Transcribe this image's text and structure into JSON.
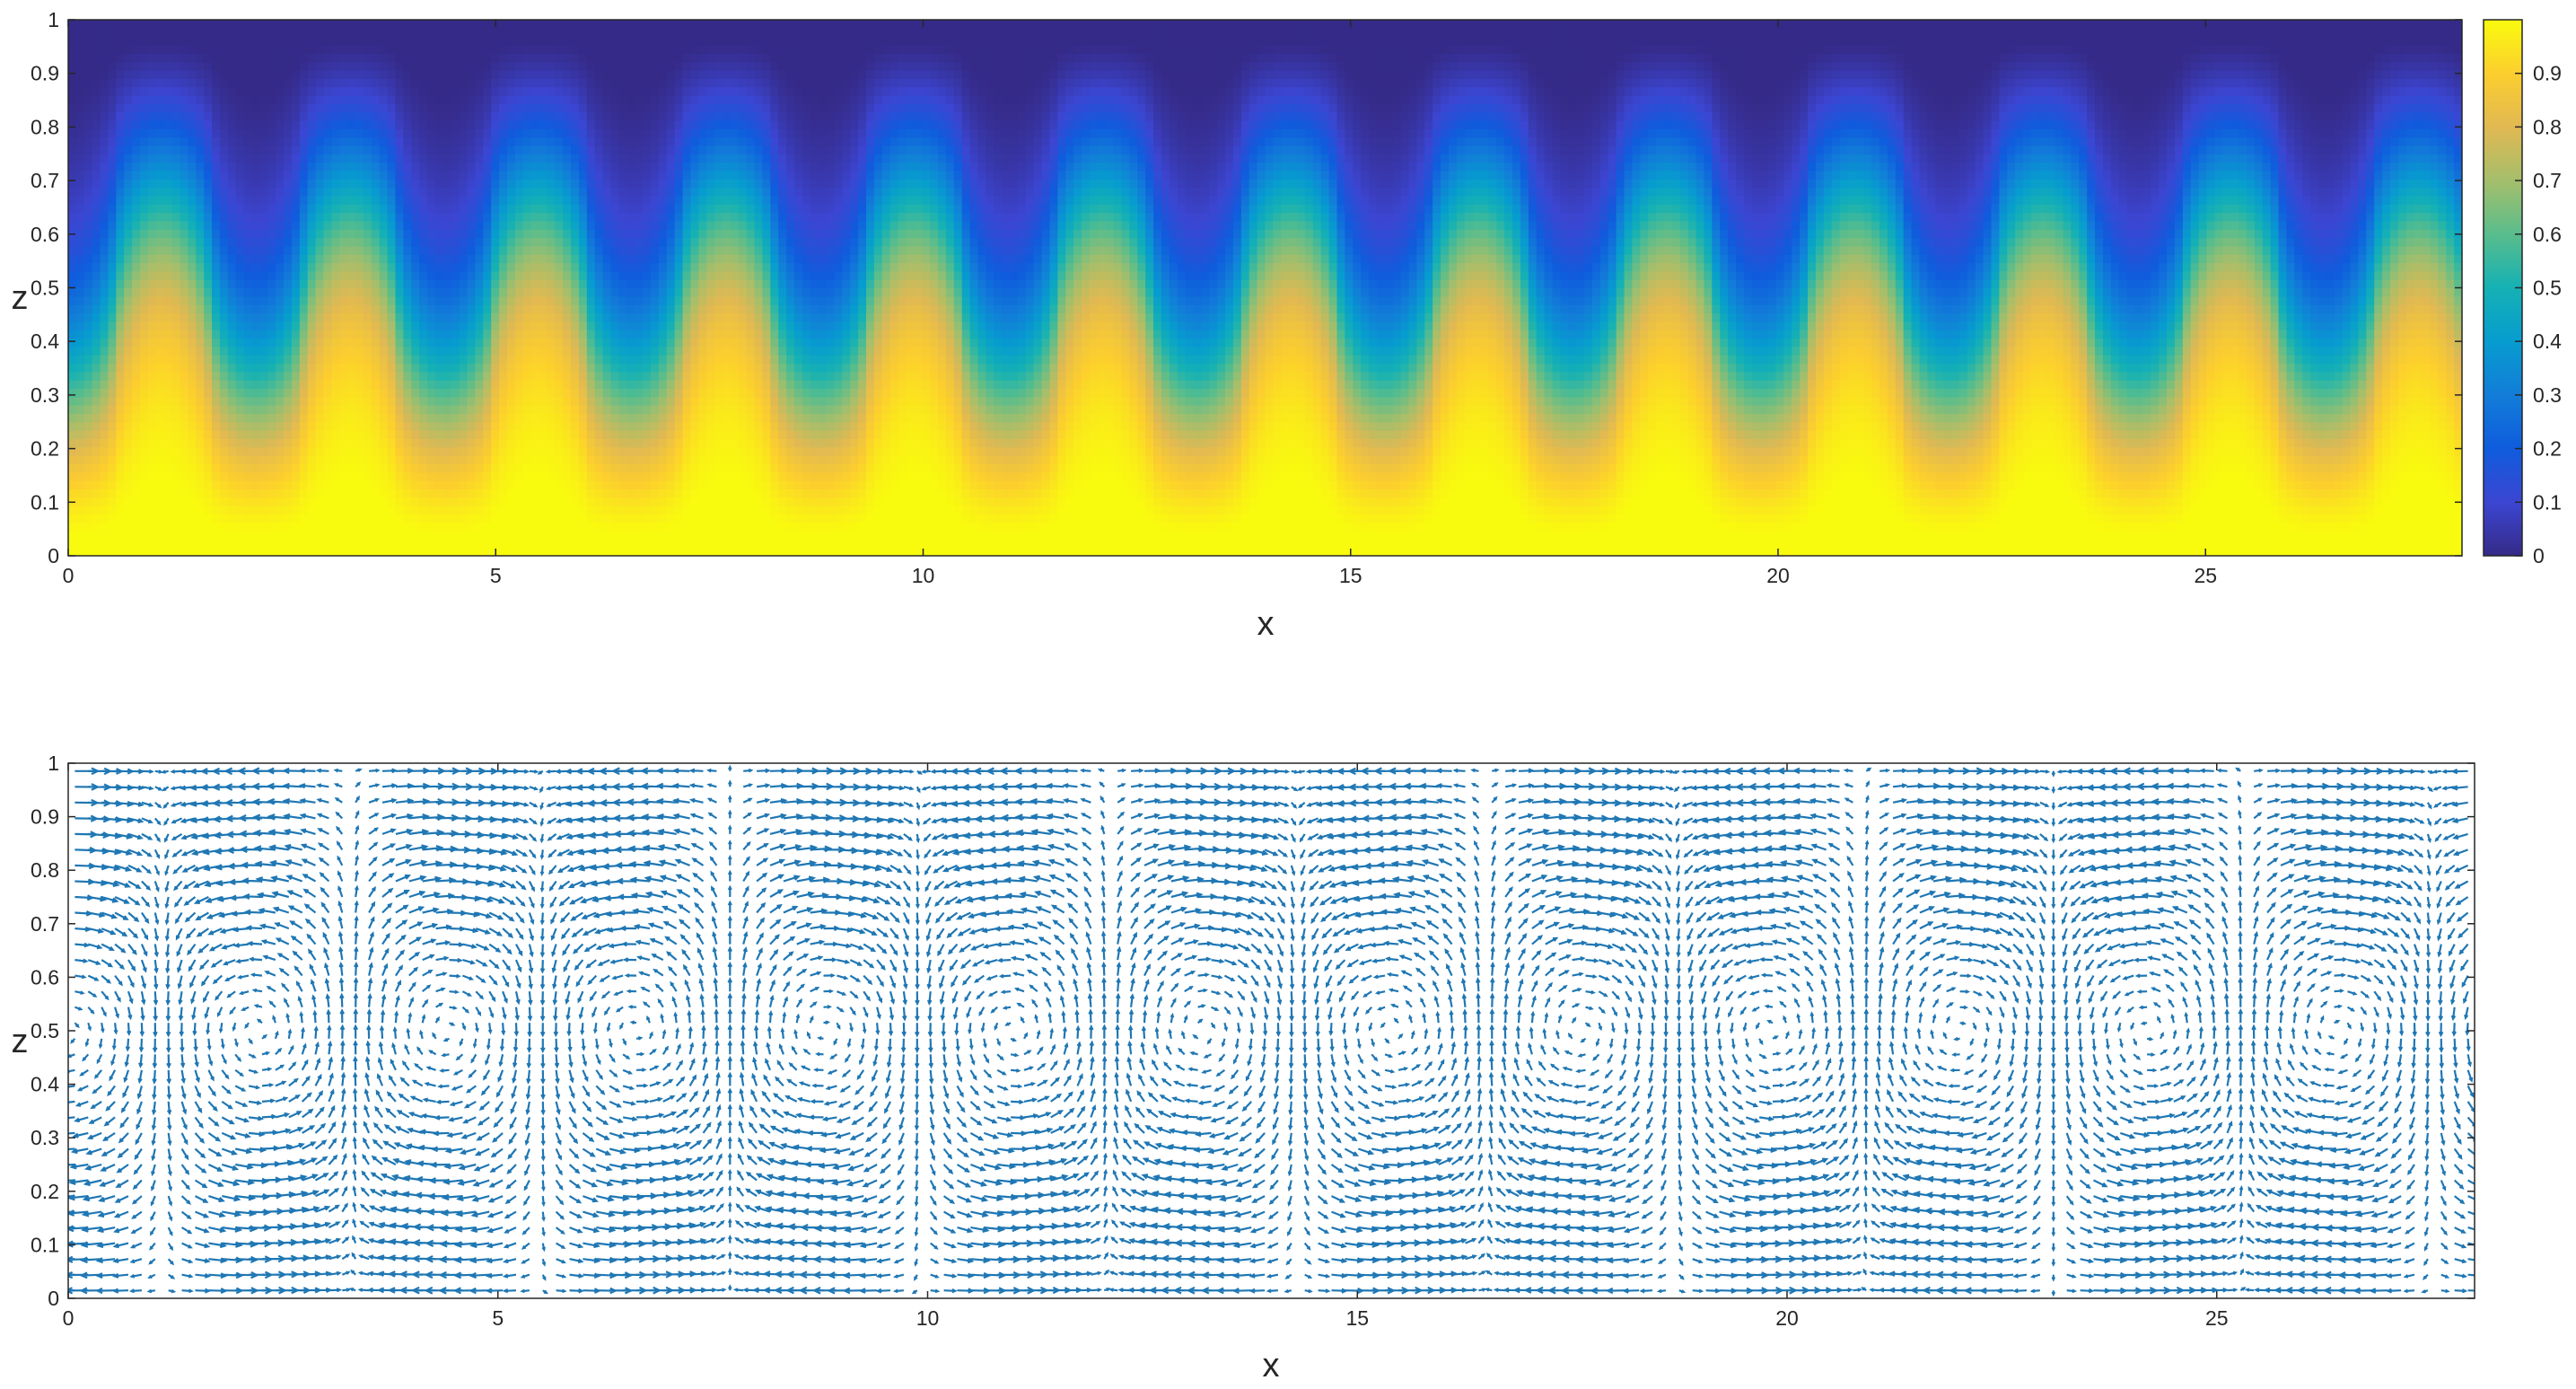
{
  "chart_data": [
    {
      "type": "heatmap",
      "title": "",
      "xlabel": "x",
      "ylabel": "z",
      "xlim": [
        0,
        28
      ],
      "ylim": [
        0,
        1
      ],
      "xticks": [
        "0",
        "5",
        "10",
        "15",
        "20",
        "25"
      ],
      "yticks": [
        "0",
        "0.1",
        "0.2",
        "0.3",
        "0.4",
        "0.5",
        "0.6",
        "0.7",
        "0.8",
        "0.9",
        "1"
      ],
      "colormap": "parula",
      "colorbar": {
        "range": [
          0,
          1
        ],
        "ticks": [
          "0",
          "0.1",
          "0.2",
          "0.3",
          "0.4",
          "0.5",
          "0.6",
          "0.7",
          "0.8",
          "0.9"
        ]
      },
      "field": {
        "description_of_values": "temperature-like field decreasing from 1 at z=0 to 0 at z=1 with periodic plumes",
        "plume_period_x": 2.2,
        "plume_count": 13,
        "plume_amplitude_z": 0.18
      }
    },
    {
      "type": "quiver",
      "title": "",
      "xlabel": "x",
      "ylabel": "z",
      "xlim": [
        0,
        28
      ],
      "ylim": [
        0,
        1
      ],
      "xticks": [
        "0",
        "5",
        "10",
        "15",
        "20",
        "25"
      ],
      "yticks": [
        "0",
        "0.1",
        "0.2",
        "0.3",
        "0.4",
        "0.5",
        "0.6",
        "0.7",
        "0.8",
        "0.9",
        "1"
      ],
      "arrow_color": "#1f77b4",
      "field": {
        "cell_width_x": 2.2,
        "cell_count": 13
      }
    }
  ]
}
